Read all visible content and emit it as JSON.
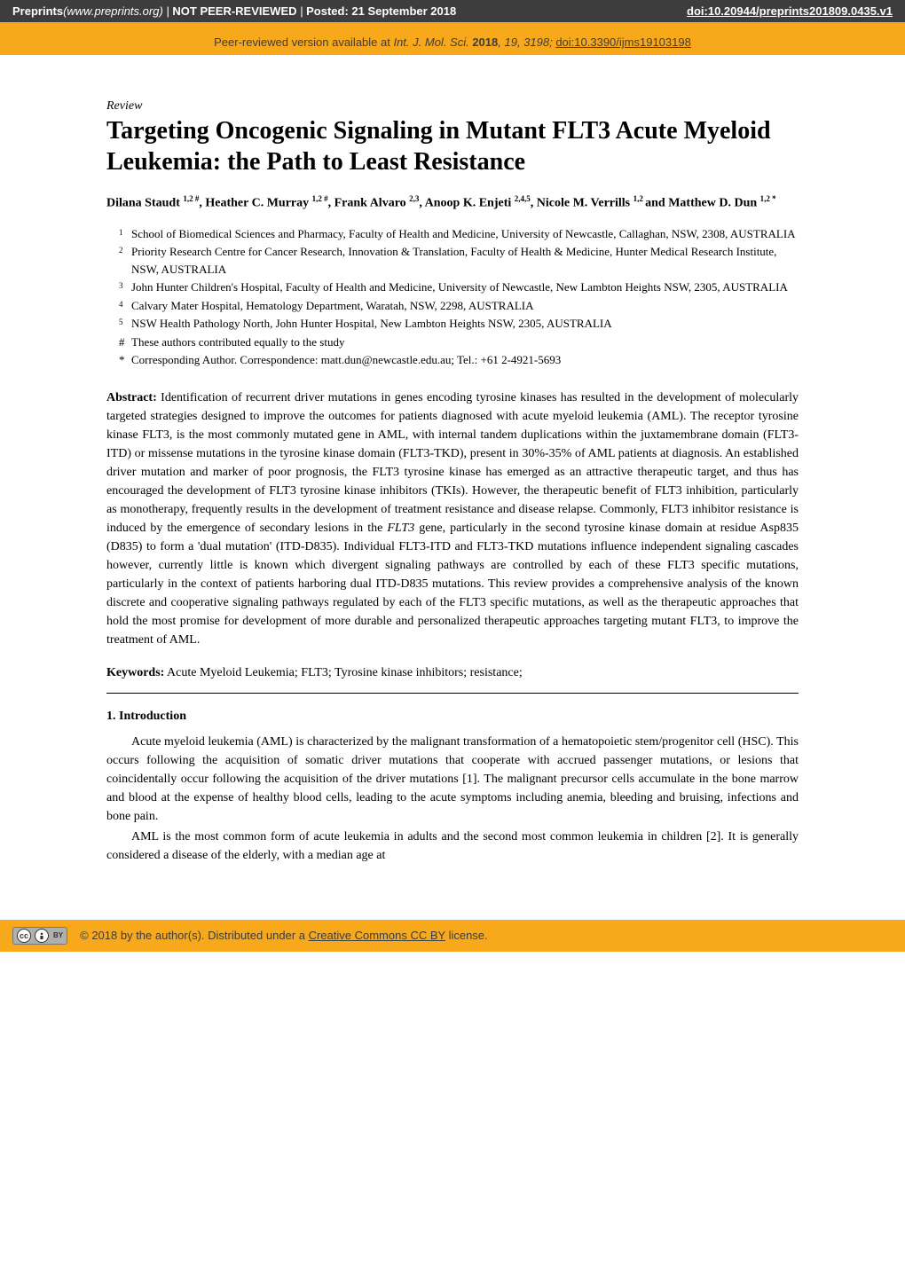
{
  "header": {
    "source": "Preprints",
    "url": "(www.preprints.org)",
    "sep1": "  |  ",
    "not_peer": "NOT PEER-REVIEWED",
    "sep2": "  |  ",
    "posted_label": "Posted:",
    "posted_date": "21 September 2018",
    "doi": "doi:10.20944/preprints201809.0435.v1"
  },
  "peer_bar": {
    "prefix": "Peer-reviewed version available at ",
    "journal": "Int. J. Mol. Sci.",
    "year_bold": " 2018",
    "rest": ", 19, 3198; ",
    "link": "doi:10.3390/ijms19103198"
  },
  "article_type": "Review",
  "title": "Targeting Oncogenic Signaling in Mutant FLT3 Acute Myeloid Leukemia: the Path to Least Resistance",
  "authors_html_parts": [
    {
      "t": "Dilana Staudt ",
      "sup": "1,2 #"
    },
    {
      "t": ", Heather C. Murray ",
      "sup": "1,2 #"
    },
    {
      "t": ", Frank Alvaro ",
      "sup": "2,3"
    },
    {
      "t": ", Anoop K. Enjeti ",
      "sup": "2,4,5"
    },
    {
      "t": ", Nicole M. Verrills ",
      "sup": "1,2 "
    },
    {
      "t": "and Matthew D. Dun ",
      "sup": "1,2 *"
    }
  ],
  "affiliations": [
    {
      "n": "1",
      "text": "School of Biomedical Sciences and Pharmacy, Faculty of Health and Medicine, University of Newcastle, Callaghan, NSW, 2308, AUSTRALIA"
    },
    {
      "n": "2",
      "text": "Priority Research Centre for Cancer Research, Innovation & Translation, Faculty of Health & Medicine, Hunter Medical Research Institute, NSW, AUSTRALIA"
    },
    {
      "n": "3",
      "text": "John Hunter Children's Hospital, Faculty of Health and Medicine, University of Newcastle, New Lambton Heights NSW, 2305, AUSTRALIA"
    },
    {
      "n": "4",
      "text": "Calvary Mater Hospital, Hematology Department, Waratah, NSW, 2298, AUSTRALIA"
    },
    {
      "n": "5",
      "text": "NSW Health Pathology North, John Hunter Hospital, New Lambton Heights NSW, 2305, AUSTRALIA"
    }
  ],
  "notes": [
    {
      "sym": "#",
      "text": "These authors contributed equally to the study"
    },
    {
      "sym": "*",
      "text": "Corresponding Author. Correspondence: matt.dun@newcastle.edu.au; Tel.: +61 2-4921-5693"
    }
  ],
  "abstract_label": "Abstract:",
  "abstract_text_1": " Identification of recurrent driver mutations in genes encoding tyrosine kinases has resulted in the development of molecularly targeted strategies designed to improve the outcomes for patients diagnosed with acute myeloid leukemia (AML). The receptor tyrosine kinase FLT3, is the most commonly mutated gene in AML, with internal tandem duplications within the juxtamembrane domain (FLT3-ITD) or missense mutations in the tyrosine kinase domain (FLT3-TKD), present in 30%-35% of AML patients at diagnosis. An established driver mutation and marker of poor prognosis, the FLT3 tyrosine kinase has emerged as an attractive therapeutic target, and thus has encouraged the development of FLT3 tyrosine kinase inhibitors (TKIs). However, the therapeutic benefit of FLT3 inhibition, particularly as monotherapy, frequently results in the development of treatment resistance and disease relapse. Commonly, FLT3 inhibitor resistance is induced by the emergence of secondary lesions in the ",
  "abstract_gene": "FLT3",
  "abstract_text_2": " gene, particularly in the second tyrosine kinase domain at residue Asp835 (D835) to form a 'dual mutation' (ITD-D835). Individual FLT3-ITD and FLT3-TKD mutations influence independent signaling cascades however, currently little is known which divergent signaling pathways are controlled by each of these FLT3 specific mutations, particularly in the context of patients harboring dual ITD-D835 mutations. This review provides a comprehensive analysis of the known discrete and cooperative signaling pathways regulated by each of the FLT3 specific mutations, as well as the therapeutic approaches that hold the most promise for development of more durable and personalized therapeutic approaches targeting mutant FLT3, to improve the treatment of AML.",
  "keywords_label": "Keywords:",
  "keywords_text": " Acute Myeloid Leukemia; FLT3; Tyrosine kinase inhibitors; resistance;",
  "section1_heading": "1. Introduction",
  "intro_p1": "Acute myeloid leukemia (AML) is characterized by the malignant transformation of a hematopoietic stem/progenitor cell (HSC). This occurs following the acquisition of somatic driver mutations that cooperate with accrued passenger mutations, or lesions that coincidentally occur following the acquisition of the driver mutations [1]. The malignant precursor cells accumulate in the bone marrow and blood at the expense of healthy blood cells, leading to the acute symptoms including anemia, bleeding and bruising, infections and bone pain.",
  "intro_p2": "AML is the most common form of acute leukemia in adults and the second most common leukemia in children [2]. It is generally considered a disease of the elderly, with a median age at",
  "footer": {
    "cc_cc": "cc",
    "cc_by": "BY",
    "copyright": "©  2018 by the author(s). Distributed under a ",
    "license_link": "Creative Commons CC BY",
    "license_suffix": " license."
  },
  "colors": {
    "header_bg": "#3d3d3d",
    "orange": "#f7a81b",
    "text": "#000000",
    "white": "#ffffff"
  }
}
